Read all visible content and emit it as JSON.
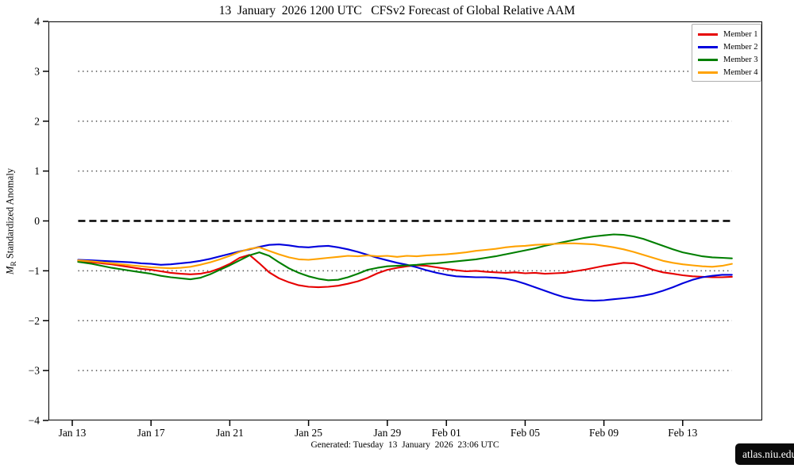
{
  "title": "13  January  2026 1200 UTC   CFSv2 Forecast of Global Relative AAM",
  "footer": "Generated: Tuesday  13  January  2026  23:06 UTC",
  "badge": "atlas.niu.edu",
  "ylabel": {
    "var": "M",
    "sub": "R",
    "rest": " Standardized Anomaly"
  },
  "chart_data": {
    "type": "line",
    "title": "13  January  2026 1200 UTC   CFSv2 Forecast of Global Relative AAM",
    "xlabel": "",
    "ylabel": "M_R Standardized Anomaly",
    "x_unit": "days since 13 Jan 2026",
    "xlim": [
      -1.21,
      35.04
    ],
    "ylim": [
      -4,
      4
    ],
    "grid": "dotted horizontal at +/-1,2,3; heavy dashed zero line",
    "legend_position": "top-right",
    "colors": {
      "zero_line": "#000000",
      "gridline": "#4a4a4a",
      "frame": "#000000"
    },
    "y_ticks": [
      {
        "label": "4",
        "value": 4
      },
      {
        "label": "3",
        "value": 3
      },
      {
        "label": "2",
        "value": 2
      },
      {
        "label": "1",
        "value": 1
      },
      {
        "label": "0",
        "value": 0
      },
      {
        "label": "−1",
        "value": -1
      },
      {
        "label": "−2",
        "value": -2
      },
      {
        "label": "−3",
        "value": -3
      },
      {
        "label": "−4",
        "value": -4
      }
    ],
    "x_ticks": [
      {
        "label": "Jan 13",
        "day": 0
      },
      {
        "label": "Jan 17",
        "day": 4
      },
      {
        "label": "Jan 21",
        "day": 8
      },
      {
        "label": "Jan 25",
        "day": 12
      },
      {
        "label": "Jan 29",
        "day": 16
      },
      {
        "label": "Feb 01",
        "day": 19
      },
      {
        "label": "Feb 05",
        "day": 23
      },
      {
        "label": "Feb 09",
        "day": 27
      },
      {
        "label": "Feb 13",
        "day": 31
      }
    ],
    "dotted_gridline_values": [
      3,
      2,
      1,
      -1,
      -2,
      -3
    ],
    "zero_line_value": 0,
    "data_x_range": [
      0.3,
      33.5
    ],
    "x": [
      0.3,
      1,
      1.5,
      2,
      2.5,
      3,
      3.5,
      4,
      4.5,
      5,
      5.5,
      6,
      6.5,
      7,
      7.5,
      8,
      8.5,
      9,
      9.5,
      10,
      10.5,
      11,
      11.5,
      12,
      12.5,
      13,
      13.5,
      14,
      14.5,
      15,
      15.5,
      16,
      16.5,
      17,
      17.5,
      18,
      18.5,
      19,
      19.5,
      20,
      20.5,
      21,
      21.5,
      22,
      22.5,
      23,
      23.5,
      24,
      24.5,
      25,
      25.5,
      26,
      26.5,
      27,
      27.5,
      28,
      28.5,
      29,
      29.5,
      30,
      30.5,
      31,
      31.5,
      32,
      32.5,
      33,
      33.5
    ],
    "series": [
      {
        "name": "Member 1",
        "color": "#e60000",
        "values": [
          -0.8,
          -0.83,
          -0.85,
          -0.87,
          -0.9,
          -0.93,
          -0.96,
          -0.98,
          -1.01,
          -1.04,
          -1.06,
          -1.07,
          -1.06,
          -1.02,
          -0.95,
          -0.86,
          -0.74,
          -0.68,
          -0.85,
          -1.03,
          -1.15,
          -1.23,
          -1.29,
          -1.32,
          -1.33,
          -1.32,
          -1.3,
          -1.26,
          -1.21,
          -1.14,
          -1.05,
          -0.98,
          -0.94,
          -0.91,
          -0.89,
          -0.9,
          -0.93,
          -0.96,
          -0.99,
          -1.01,
          -1.0,
          -1.02,
          -1.03,
          -1.04,
          -1.03,
          -1.05,
          -1.04,
          -1.06,
          -1.05,
          -1.04,
          -1.01,
          -0.98,
          -0.94,
          -0.9,
          -0.87,
          -0.84,
          -0.85,
          -0.91,
          -0.98,
          -1.03,
          -1.06,
          -1.09,
          -1.11,
          -1.12,
          -1.13,
          -1.13,
          -1.12
        ]
      },
      {
        "name": "Member 2",
        "color": "#0000dd",
        "values": [
          -0.78,
          -0.79,
          -0.8,
          -0.81,
          -0.82,
          -0.83,
          -0.85,
          -0.86,
          -0.88,
          -0.87,
          -0.85,
          -0.83,
          -0.8,
          -0.76,
          -0.71,
          -0.66,
          -0.61,
          -0.57,
          -0.52,
          -0.48,
          -0.47,
          -0.49,
          -0.52,
          -0.53,
          -0.51,
          -0.5,
          -0.53,
          -0.57,
          -0.62,
          -0.68,
          -0.74,
          -0.79,
          -0.84,
          -0.88,
          -0.93,
          -0.99,
          -1.04,
          -1.08,
          -1.11,
          -1.12,
          -1.13,
          -1.13,
          -1.14,
          -1.16,
          -1.2,
          -1.26,
          -1.33,
          -1.4,
          -1.47,
          -1.53,
          -1.57,
          -1.59,
          -1.6,
          -1.59,
          -1.57,
          -1.55,
          -1.53,
          -1.5,
          -1.46,
          -1.4,
          -1.33,
          -1.25,
          -1.18,
          -1.13,
          -1.1,
          -1.08,
          -1.08
        ]
      },
      {
        "name": "Member 3",
        "color": "#007f00",
        "values": [
          -0.82,
          -0.86,
          -0.9,
          -0.94,
          -0.97,
          -1.0,
          -1.03,
          -1.06,
          -1.1,
          -1.13,
          -1.15,
          -1.17,
          -1.14,
          -1.07,
          -0.98,
          -0.89,
          -0.79,
          -0.69,
          -0.63,
          -0.7,
          -0.83,
          -0.95,
          -1.04,
          -1.11,
          -1.16,
          -1.19,
          -1.18,
          -1.13,
          -1.06,
          -0.98,
          -0.94,
          -0.91,
          -0.9,
          -0.89,
          -0.88,
          -0.86,
          -0.85,
          -0.83,
          -0.81,
          -0.79,
          -0.77,
          -0.74,
          -0.71,
          -0.67,
          -0.63,
          -0.59,
          -0.55,
          -0.5,
          -0.46,
          -0.42,
          -0.38,
          -0.34,
          -0.31,
          -0.29,
          -0.27,
          -0.28,
          -0.31,
          -0.36,
          -0.43,
          -0.5,
          -0.57,
          -0.63,
          -0.67,
          -0.71,
          -0.73,
          -0.74,
          -0.75
        ]
      },
      {
        "name": "Member 4",
        "color": "#ffa200",
        "values": [
          -0.79,
          -0.81,
          -0.83,
          -0.85,
          -0.87,
          -0.89,
          -0.91,
          -0.93,
          -0.94,
          -0.95,
          -0.94,
          -0.92,
          -0.88,
          -0.83,
          -0.77,
          -0.7,
          -0.62,
          -0.56,
          -0.53,
          -0.6,
          -0.67,
          -0.73,
          -0.77,
          -0.78,
          -0.76,
          -0.74,
          -0.72,
          -0.7,
          -0.71,
          -0.69,
          -0.71,
          -0.7,
          -0.72,
          -0.7,
          -0.71,
          -0.69,
          -0.68,
          -0.67,
          -0.65,
          -0.63,
          -0.6,
          -0.58,
          -0.56,
          -0.53,
          -0.51,
          -0.5,
          -0.48,
          -0.47,
          -0.46,
          -0.45,
          -0.45,
          -0.46,
          -0.47,
          -0.5,
          -0.53,
          -0.57,
          -0.62,
          -0.68,
          -0.74,
          -0.8,
          -0.84,
          -0.87,
          -0.89,
          -0.91,
          -0.92,
          -0.9,
          -0.86
        ]
      }
    ]
  }
}
